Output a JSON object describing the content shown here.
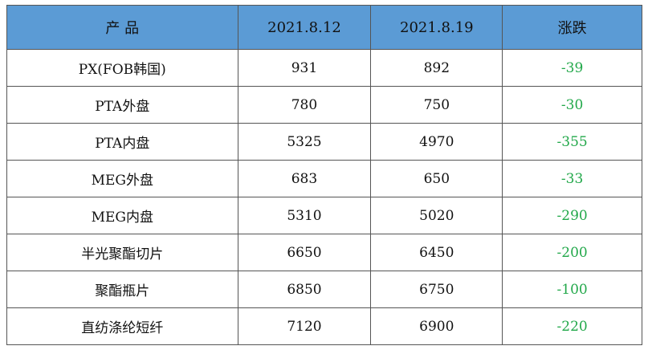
{
  "table": {
    "header": [
      "产 品",
      "2021.8.12",
      "2021.8.19",
      "涨跌"
    ],
    "rows": [
      [
        "PX(FOB韩国)",
        "931",
        "892",
        "-39"
      ],
      [
        "PTA外盘",
        "780",
        "750",
        "-30"
      ],
      [
        "PTA内盘",
        "5325",
        "4970",
        "-355"
      ],
      [
        "MEG外盘",
        "683",
        "650",
        "-33"
      ],
      [
        "MEG内盘",
        "5310",
        "5020",
        "-290"
      ],
      [
        "半光聚酯切片",
        "6650",
        "6450",
        "-200"
      ],
      [
        "聚酯瓶片",
        "6850",
        "6750",
        "-100"
      ],
      [
        "直纺涤纶短纤",
        "7120",
        "6900",
        "-220"
      ]
    ]
  }
}
